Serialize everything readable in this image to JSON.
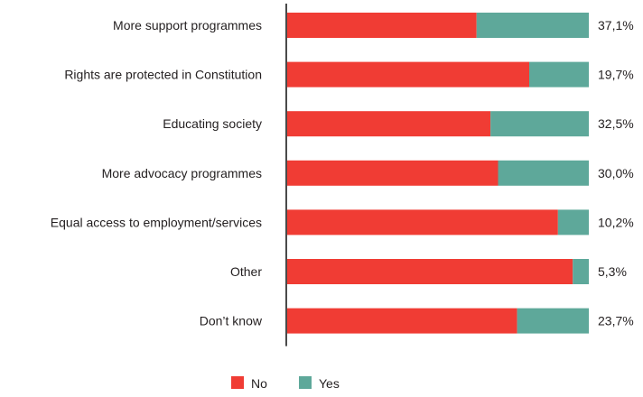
{
  "chart_data": {
    "type": "bar",
    "orientation": "horizontal",
    "stacked": true,
    "normalized": true,
    "categories": [
      "More support programmes",
      "Rights are protected in Constitution",
      "Educating society",
      "More advocacy programmes",
      "Equal access to employment/services",
      "Other",
      "Don’t know"
    ],
    "series": [
      {
        "name": "No",
        "values": [
          62.9,
          80.3,
          67.5,
          70.0,
          89.8,
          94.7,
          76.3
        ]
      },
      {
        "name": "Yes",
        "values": [
          37.1,
          19.7,
          32.5,
          30.0,
          10.2,
          5.3,
          23.7
        ]
      }
    ],
    "data_labels": [
      "37,1%",
      "19,7%",
      "32,5%",
      "30,0%",
      "10,2%",
      "5,3%",
      "23,7%"
    ],
    "xlim": [
      0,
      100
    ],
    "grid": false,
    "legend_position": "bottom",
    "colors": {
      "No": "#f03c34",
      "Yes": "#5ea89a",
      "axis": "#4a4a4a"
    }
  }
}
